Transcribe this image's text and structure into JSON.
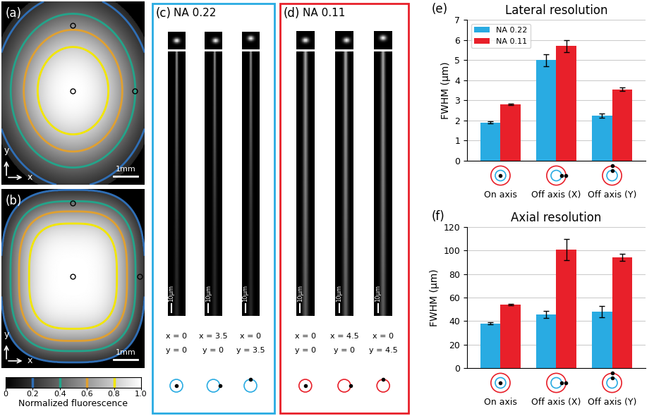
{
  "panels": {
    "a": {
      "label": "(a)",
      "scale_bar": "1mm",
      "axes": [
        "x",
        "y"
      ]
    },
    "b": {
      "label": "(b)",
      "scale_bar": "1mm",
      "axes": [
        "x",
        "y"
      ]
    },
    "colorbar": {
      "label": "Normalized fluorescence",
      "xlim": [
        0,
        1.0
      ],
      "ticks": [
        0,
        0.2,
        0.4,
        0.6,
        0.8,
        1.0
      ],
      "levels": [
        0.2,
        0.4,
        0.6,
        0.8
      ],
      "level_colors": [
        "#2f6eb5",
        "#23a48a",
        "#e0a030",
        "#f2e600"
      ]
    },
    "c": {
      "label": "(c)",
      "title": "NA 0.22",
      "color": "#29abe2",
      "scale_bar": "10µm",
      "columns": [
        {
          "x": "x = 0",
          "y": "y = 0"
        },
        {
          "x": "x = 3.5",
          "y": "y = 0"
        },
        {
          "x": "x = 0",
          "y": "y = 3.5"
        }
      ]
    },
    "d": {
      "label": "(d)",
      "title": "NA 0.11",
      "color": "#e8202a",
      "scale_bar": "10µm",
      "columns": [
        {
          "x": "x = 0",
          "y": "y = 0"
        },
        {
          "x": "x = 4.5",
          "y": "y = 0"
        },
        {
          "x": "x = 0",
          "y": "y = 4.5"
        }
      ]
    }
  },
  "chart_data": [
    {
      "type": "bar",
      "label": "(e)",
      "title": "Lateral resolution",
      "y_label": "FWHM (μm)",
      "categories": [
        "On axis",
        "Off axis (X)",
        "Off axis (Y)"
      ],
      "series": [
        {
          "name": "NA 0.22",
          "color": "#29abe2",
          "values": [
            1.9,
            5.0,
            2.25
          ],
          "errors": [
            0.05,
            0.3,
            0.1
          ]
        },
        {
          "name": "NA 0.11",
          "color": "#e8202a",
          "values": [
            2.8,
            5.7,
            3.55
          ],
          "errors": [
            0.05,
            0.3,
            0.1
          ]
        }
      ],
      "ylim": [
        0,
        7
      ],
      "yticks": [
        0,
        1,
        2,
        3,
        4,
        5,
        6,
        7
      ],
      "grid": true,
      "legend": "upper left"
    },
    {
      "type": "bar",
      "label": "(f)",
      "title": "Axial resolution",
      "y_label": "FWHM (μm)",
      "categories": [
        "On axis",
        "Off axis (X)",
        "Off axis (Y)"
      ],
      "series": [
        {
          "color": "#29abe2",
          "values": [
            38,
            45.5,
            48
          ],
          "errors": [
            1,
            3,
            5
          ]
        },
        {
          "color": "#e8202a",
          "values": [
            54,
            101,
            94
          ],
          "errors": [
            0.5,
            9,
            3
          ]
        }
      ],
      "ylim": [
        0,
        120
      ],
      "yticks": [
        0,
        20,
        40,
        60,
        80,
        100,
        120
      ],
      "grid": true
    }
  ]
}
